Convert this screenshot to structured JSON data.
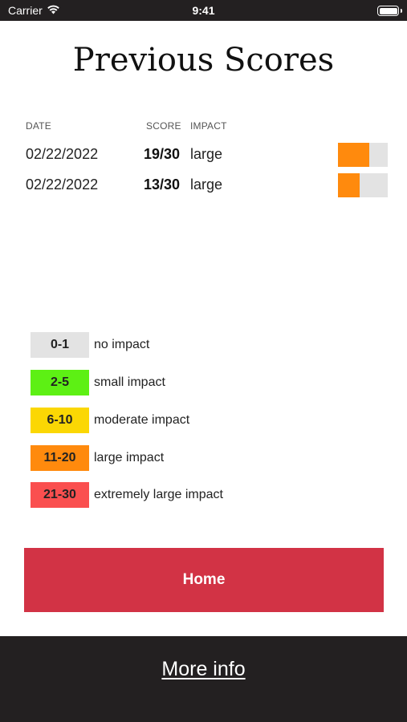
{
  "status_bar": {
    "carrier": "Carrier",
    "time": "9:41",
    "wifi_icon": "wifi-icon",
    "battery_icon": "battery-icon",
    "battery_level": 1.0
  },
  "page_title": "Previous Scores",
  "table": {
    "headers": {
      "date": "DATE",
      "score": "SCORE",
      "impact": "IMPACT"
    },
    "rows": [
      {
        "date": "02/22/2022",
        "score": "19/30",
        "impact": "large",
        "meter_fraction": 0.633
      },
      {
        "date": "02/22/2022",
        "score": "13/30",
        "impact": "large",
        "meter_fraction": 0.433
      }
    ],
    "meter_color": "#ff8a0d",
    "meter_track_color": "#e3e3e3"
  },
  "legend": [
    {
      "range": "0-1",
      "label": "no impact",
      "color": "#e3e3e3"
    },
    {
      "range": "2-5",
      "label": "small impact",
      "color": "#5df014"
    },
    {
      "range": "6-10",
      "label": "moderate impact",
      "color": "#fbd704"
    },
    {
      "range": "11-20",
      "label": "large impact",
      "color": "#ff8a0d"
    },
    {
      "range": "21-30",
      "label": "extremely large impact",
      "color": "#fa4f4f"
    }
  ],
  "home_button": {
    "label": "Home",
    "color": "#d23345"
  },
  "footer": {
    "more_info_label": "More info",
    "background": "#232021"
  }
}
